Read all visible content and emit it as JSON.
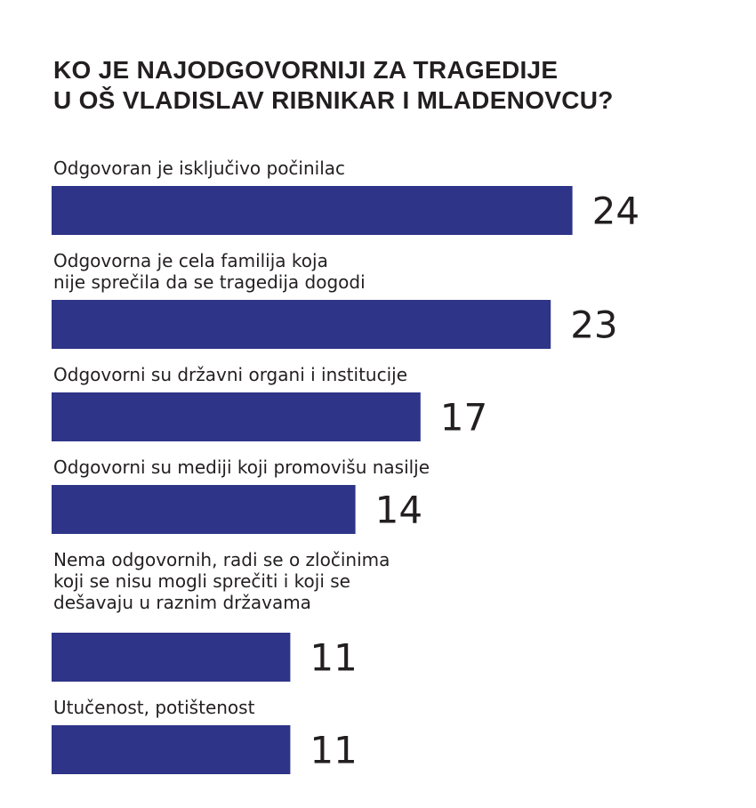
{
  "chart_data": {
    "type": "bar",
    "orientation": "horizontal",
    "title": [
      "KO JE NAJODGOVORNIJI ZA TRAGEDIJE",
      "U OŠ VLADISLAV RIBNIKAR I MLADENOVCU?"
    ],
    "categories": [
      [
        "Odgovoran je isključivo počinilac"
      ],
      [
        "Odgovorna je cela familija koja",
        "nije sprečila da se tragedija dogodi"
      ],
      [
        "Odgovorni su državni organi i institucije"
      ],
      [
        "Odgovorni su mediji koji promovišu nasilje"
      ],
      [
        "Nema odgovornih, radi se o zločinima",
        "koji se nisu mogli sprečiti i koji se",
        "dešavaju u raznim državama"
      ],
      [
        "Utučenost, potištenost"
      ]
    ],
    "values": [
      24,
      23,
      17,
      14,
      11,
      11
    ],
    "value_labels": [
      "24",
      "23",
      "17",
      "14",
      "11",
      "11"
    ],
    "bar_color": "#2e3488",
    "text_color": "#231f20"
  }
}
